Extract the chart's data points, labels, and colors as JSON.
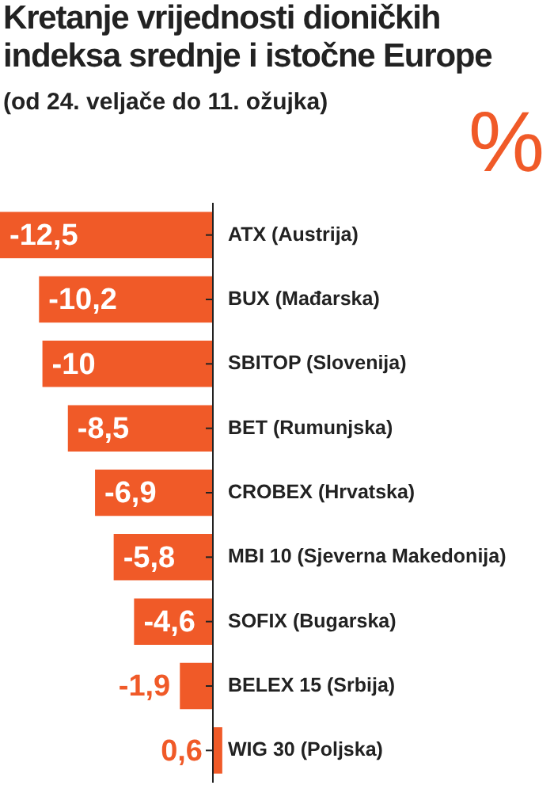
{
  "chart_data": {
    "type": "bar",
    "orientation": "horizontal",
    "title": "Kretanje vrijednosti dioničkih indeksa srednje i istočne Europe",
    "subtitle": "(od 24. veljače do 11. ožujka)",
    "annotations": [
      "%"
    ],
    "categories": [
      "ATX (Austrija)",
      "BUX (Mađarska)",
      "SBITOP (Slovenija)",
      "BET (Rumunjska)",
      "CROBEX (Hrvatska)",
      "MBI 10 (Sjeverna Makedonija)",
      "SOFIX (Bugarska)",
      "BELEX 15 (Srbija)",
      "WIG 30 (Poljska)"
    ],
    "values": [
      -12.5,
      -10.2,
      -10,
      -8.5,
      -6.9,
      -5.8,
      -4.6,
      -1.9,
      0.6
    ],
    "value_labels": [
      "-12,5",
      "-10,2",
      "-10",
      "-8,5",
      "-6,9",
      "-5,8",
      "-4,6",
      "-1,9",
      "0,6"
    ],
    "color": "#f05a28"
  }
}
